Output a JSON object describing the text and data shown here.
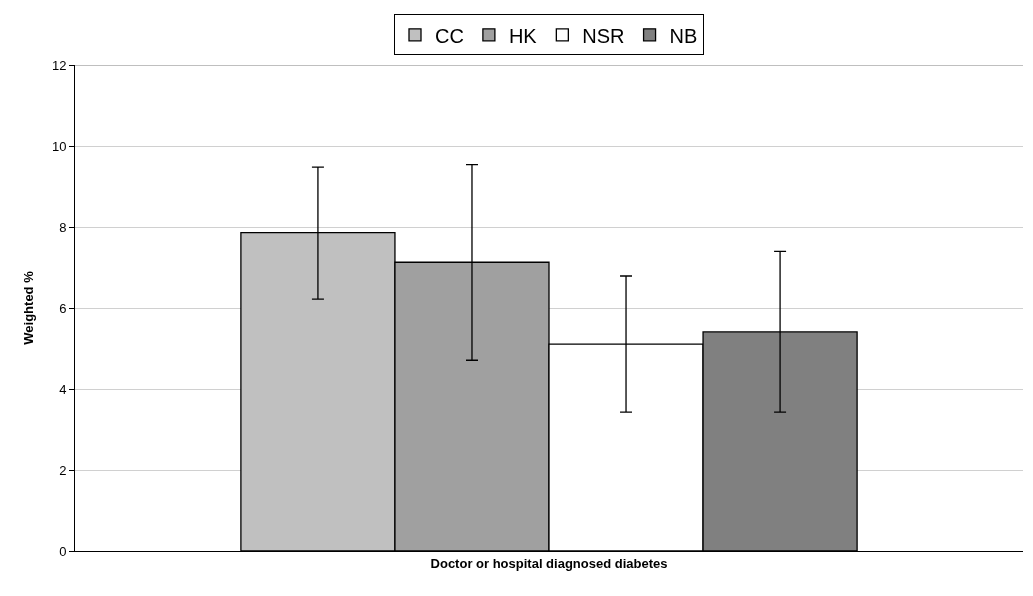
{
  "chart_data": {
    "type": "bar",
    "ylabel": "Weighted %",
    "categories": [
      "Doctor or hospital diagnosed diabetes"
    ],
    "series": [
      {
        "name": "CC",
        "color": "#c0c0c0",
        "values": [
          7.86
        ],
        "errors": [
          [
            6.22,
            9.48
          ]
        ]
      },
      {
        "name": "HK",
        "color": "#a0a0a0",
        "values": [
          7.13
        ],
        "errors": [
          [
            4.71,
            9.54
          ]
        ]
      },
      {
        "name": "NSR",
        "color": "#ffffff",
        "values": [
          5.11
        ],
        "errors": [
          [
            3.43,
            6.79
          ]
        ]
      },
      {
        "name": "NB",
        "color": "#808080",
        "values": [
          5.41
        ],
        "errors": [
          [
            3.43,
            7.4
          ]
        ]
      }
    ],
    "ylim": [
      0,
      12
    ],
    "yticks": [
      0,
      2,
      4,
      6,
      8,
      10,
      12
    ],
    "grid": "y",
    "legend": "top"
  }
}
